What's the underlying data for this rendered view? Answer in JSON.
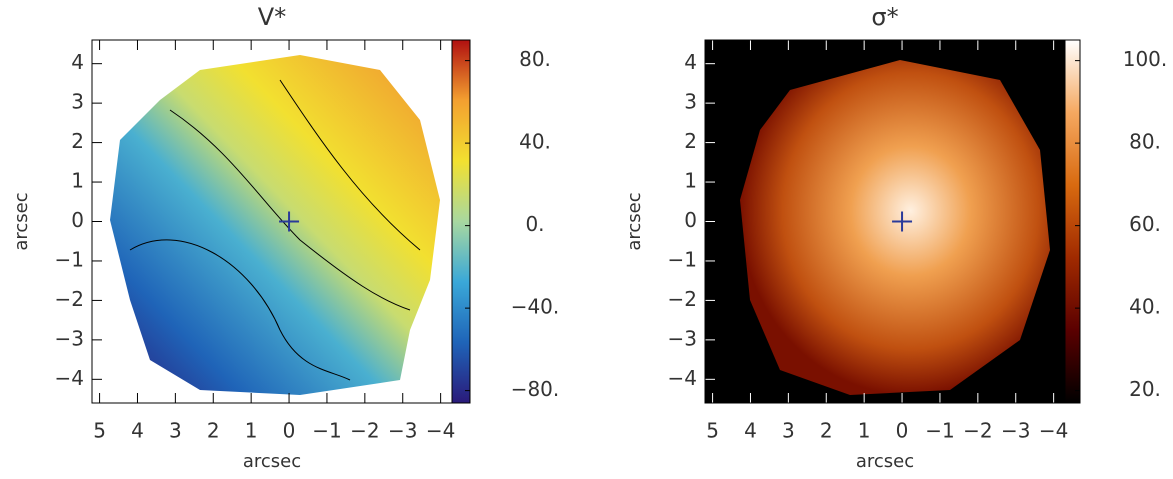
{
  "chart_data": [
    {
      "type": "image",
      "title": "V*",
      "xlabel": "arcsec",
      "ylabel": "arcsec",
      "xlim": [
        5.2,
        -4.3
      ],
      "ylim": [
        -4.6,
        4.6
      ],
      "xticks": [
        5,
        4,
        3,
        2,
        1,
        0,
        {
          "value": -1,
          "label": "−1"
        },
        {
          "value": -2,
          "label": "−2"
        },
        {
          "value": -3,
          "label": "−3"
        },
        {
          "value": -4,
          "label": "−4"
        }
      ],
      "yticks": [
        {
          "value": -4,
          "label": "−4"
        },
        {
          "value": -3,
          "label": "−3"
        },
        {
          "value": -2,
          "label": "−2"
        },
        {
          "value": -1,
          "label": "−1"
        },
        0,
        1,
        2,
        3,
        4
      ],
      "clim": [
        -86,
        90
      ],
      "cticks": [
        {
          "value": -80,
          "label": "−80."
        },
        {
          "value": -40,
          "label": "−40."
        },
        {
          "value": 0,
          "label": "0."
        },
        {
          "value": 40,
          "label": "40."
        },
        {
          "value": 80,
          "label": "80."
        }
      ],
      "colormap": [
        "#2a1a7a",
        "#1f64b8",
        "#3aa8d8",
        "#a8d8a0",
        "#f2e030",
        "#f3a030",
        "#b01010"
      ],
      "tick_color": "#000000",
      "marker": {
        "x": 0,
        "y": 0
      }
    },
    {
      "type": "image",
      "title": "σ*",
      "xlabel": "arcsec",
      "ylabel": "arcsec",
      "xlim": [
        5.2,
        -4.3
      ],
      "ylim": [
        -4.6,
        4.6
      ],
      "xticks": [
        5,
        4,
        3,
        2,
        1,
        0,
        {
          "value": -1,
          "label": "−1"
        },
        {
          "value": -2,
          "label": "−2"
        },
        {
          "value": -3,
          "label": "−3"
        },
        {
          "value": -4,
          "label": "−4"
        }
      ],
      "yticks": [
        {
          "value": -4,
          "label": "−4"
        },
        {
          "value": -3,
          "label": "−3"
        },
        {
          "value": -2,
          "label": "−2"
        },
        {
          "value": -1,
          "label": "−1"
        },
        0,
        1,
        2,
        3,
        4
      ],
      "clim": [
        17,
        105
      ],
      "cticks": [
        {
          "value": 20,
          "label": "20."
        },
        {
          "value": 40,
          "label": "40."
        },
        {
          "value": 60,
          "label": "60."
        },
        {
          "value": 80,
          "label": "80."
        },
        {
          "value": 100,
          "label": "100."
        }
      ],
      "colormap": [
        "#000000",
        "#5a0000",
        "#a02a00",
        "#d86a10",
        "#f5a860",
        "#ffffff"
      ],
      "tick_color": "#ffffff",
      "marker": {
        "x": 0,
        "y": 0
      }
    }
  ]
}
